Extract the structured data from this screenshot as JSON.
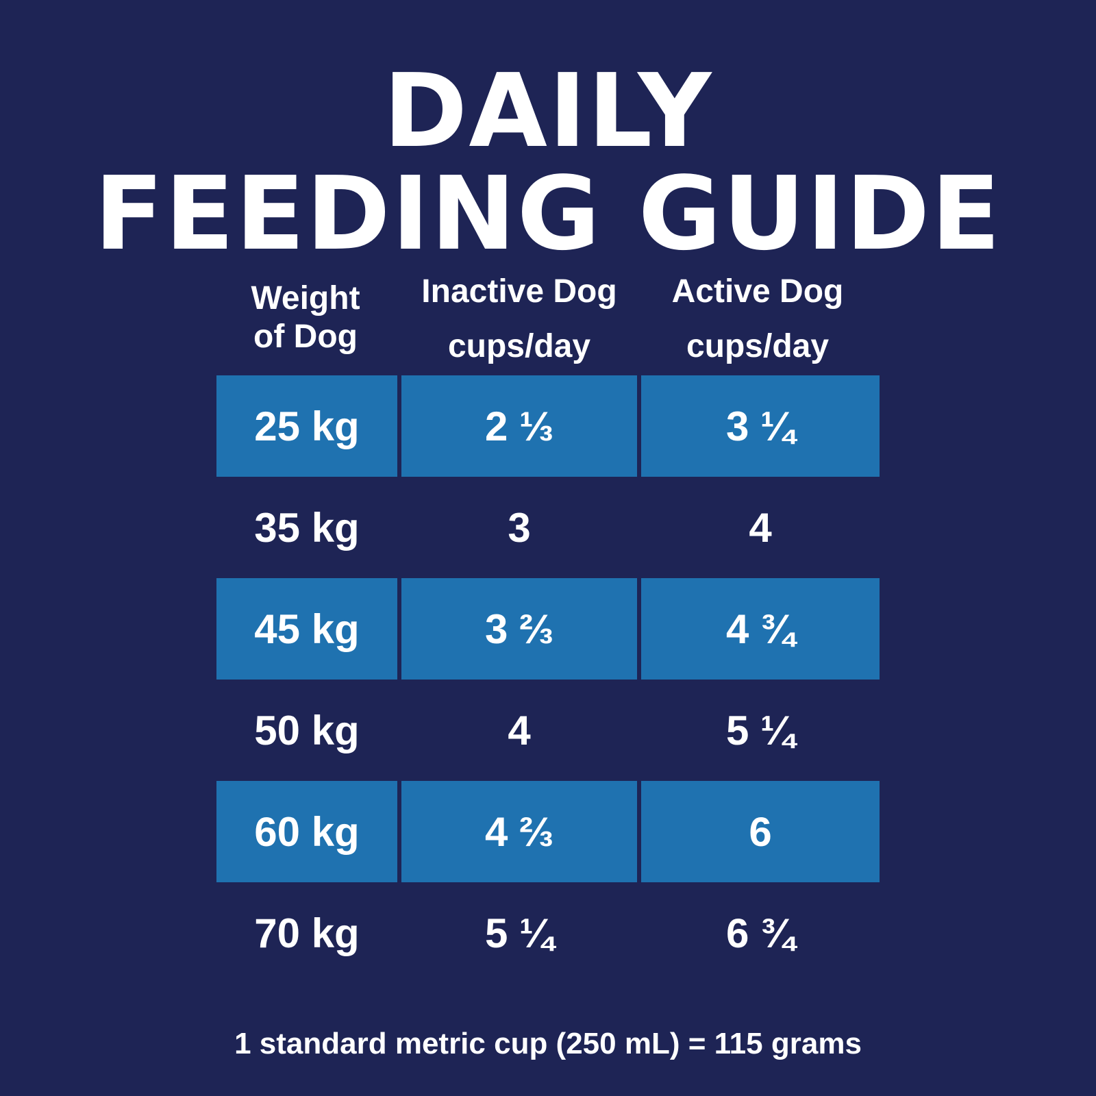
{
  "title": {
    "line1": "DAILY",
    "line2": "FEEDING GUIDE"
  },
  "headers": {
    "weight": {
      "line1": "Weight",
      "line2": "of Dog"
    },
    "inactive": {
      "line1": "Inactive Dog",
      "line2": "cups/day"
    },
    "active": {
      "line1": "Active Dog",
      "line2": "cups/day"
    }
  },
  "rows": [
    {
      "weight": "25 kg",
      "inactive": "2 ⅓",
      "active": "3 ¼",
      "highlighted": true
    },
    {
      "weight": "35 kg",
      "inactive": "3",
      "active": "4",
      "highlighted": false
    },
    {
      "weight": "45 kg",
      "inactive": "3 ⅔",
      "active": "4 ¾",
      "highlighted": true
    },
    {
      "weight": "50 kg",
      "inactive": "4",
      "active": "5 ¼",
      "highlighted": false
    },
    {
      "weight": "60 kg",
      "inactive": "4 ⅔",
      "active": "6",
      "highlighted": true
    },
    {
      "weight": "70 kg",
      "inactive": "5 ¼",
      "active": "6 ¾",
      "highlighted": false
    }
  ],
  "footer": "1 standard metric cup (250 mL) = 115 grams",
  "colors": {
    "background": "#1e2455",
    "highlight": "#1f72b0",
    "text": "#ffffff"
  }
}
